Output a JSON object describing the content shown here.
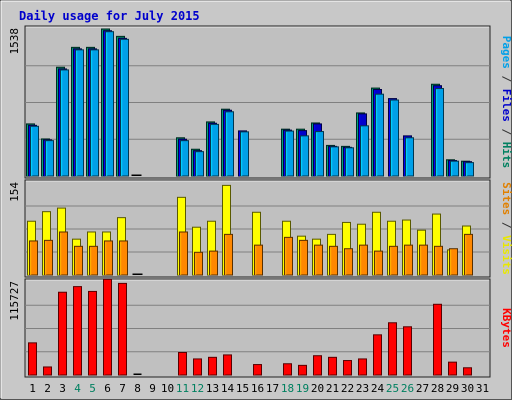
{
  "chart_data": {
    "type": "bar",
    "title": "Daily usage for July 2015",
    "x": [
      "1",
      "2",
      "3",
      "4",
      "5",
      "6",
      "7",
      "8",
      "9",
      "10",
      "11",
      "12",
      "13",
      "14",
      "15",
      "16",
      "17",
      "18",
      "19",
      "20",
      "21",
      "22",
      "23",
      "24",
      "25",
      "26",
      "27",
      "28",
      "29",
      "30",
      "31"
    ],
    "weekend_days": [
      "4",
      "5",
      "11",
      "12",
      "18",
      "19",
      "25",
      "26"
    ],
    "panels": [
      {
        "max_label": "1538",
        "ymax": 1538,
        "right_label": [
          {
            "text": "Pages",
            "color": "#00a0e8"
          },
          {
            "text": " / ",
            "color": "#333333"
          },
          {
            "text": "Files",
            "color": "#0000cc"
          },
          {
            "text": " / ",
            "color": "#333333"
          },
          {
            "text": "Hits",
            "color": "#008060"
          }
        ],
        "series": [
          {
            "name": "Hits",
            "color": "#008060",
            "values": [
              545,
              388,
              1138,
              1346,
              1346,
              1538,
              1461,
              8,
              0,
              0,
              400,
              280,
              566,
              699,
              0,
              0,
              0,
              490,
              490,
              555,
              320,
              310,
              660,
              920,
              0,
              0,
              0,
              960,
              170,
              155,
              0
            ]
          },
          {
            "name": "Files",
            "color": "#0000cc",
            "values": [
              530,
              378,
              1120,
              1330,
              1330,
              1520,
              1440,
              6,
              0,
              0,
              385,
              265,
              552,
              688,
              472,
              0,
              0,
              480,
              475,
              545,
              310,
              300,
              650,
              905,
              810,
              420,
              0,
              945,
              162,
              150,
              0
            ]
          },
          {
            "name": "Pages",
            "color": "#00a0e8",
            "values": [
              520,
              370,
              1110,
              1320,
              1320,
              1510,
              1430,
              0,
              0,
              0,
              370,
              255,
              540,
              672,
              462,
              0,
              0,
              470,
              420,
              465,
              305,
              295,
              525,
              856,
              795,
              400,
              0,
              915,
              155,
              140,
              0
            ]
          }
        ]
      },
      {
        "max_label": "154",
        "ymax": 154,
        "right_label": [
          {
            "text": "Sites",
            "color": "#e08000"
          },
          {
            "text": " / ",
            "color": "#333333"
          },
          {
            "text": "Visits",
            "color": "#e8e800"
          }
        ],
        "series": [
          {
            "name": "Visits",
            "color": "#ffff00",
            "values": [
              90,
              106,
              112,
              60,
              72,
              72,
              96,
              1,
              0,
              0,
              130,
              80,
              90,
              150,
              0,
              105,
              0,
              90,
              65,
              60,
              68,
              88,
              85,
              105,
              90,
              92,
              75,
              102,
              42,
              82,
              0
            ]
          },
          {
            "name": "Sites",
            "color": "#ff8800",
            "values": [
              57,
              58,
              72,
              48,
              48,
              57,
              57,
              1,
              0,
              0,
              72,
              38,
              40,
              68,
              0,
              50,
              0,
              63,
              58,
              50,
              48,
              44,
              50,
              40,
              48,
              50,
              50,
              48,
              44,
              68,
              0
            ]
          }
        ]
      },
      {
        "max_label": "115727",
        "ymax": 115727,
        "right_label": [
          {
            "text": "KBytes",
            "color": "#ff0000"
          }
        ],
        "series": [
          {
            "name": "KBytes",
            "color": "#ff0000",
            "values": [
              40000,
              10000,
              103000,
              110000,
              104000,
              119000,
              114000,
              1000,
              0,
              0,
              28000,
              20000,
              22000,
              25000,
              0,
              13000,
              0,
              14000,
              12000,
              24000,
              22000,
              18000,
              20000,
              50000,
              65000,
              60000,
              0,
              88000,
              16000,
              9000,
              0
            ]
          }
        ]
      }
    ],
    "grid": true,
    "background": "#c0c0c0"
  }
}
